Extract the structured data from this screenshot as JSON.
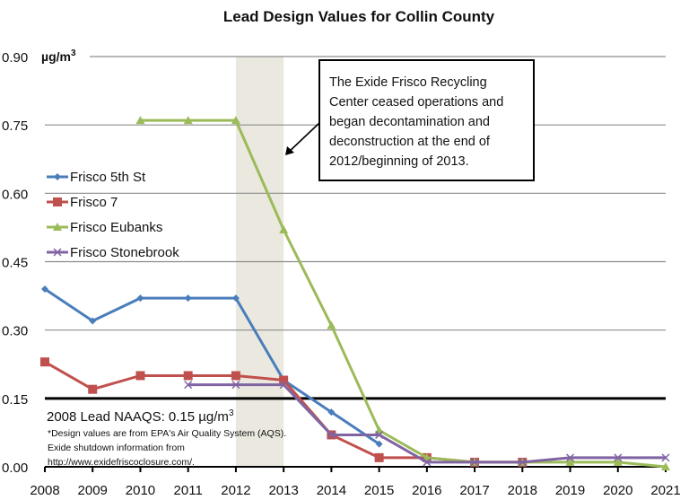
{
  "chart_data": {
    "type": "line",
    "title": "Lead Design Values for Collin County",
    "ylabel": "µg/m³",
    "xlabel": "",
    "x": [
      2008,
      2009,
      2010,
      2011,
      2012,
      2013,
      2014,
      2015,
      2016,
      2017,
      2018,
      2019,
      2020,
      2021
    ],
    "xlim": [
      2008,
      2021
    ],
    "ylim": [
      0,
      0.9
    ],
    "yticks": [
      "0.00",
      "0.15",
      "0.30",
      "0.45",
      "0.60",
      "0.75",
      "0.90"
    ],
    "ytick_values": [
      0,
      0.15,
      0.3,
      0.45,
      0.6,
      0.75,
      0.9
    ],
    "xticks": [
      "2008",
      "2009",
      "2010",
      "2011",
      "2012",
      "2013",
      "2014",
      "2015",
      "2016",
      "2017",
      "2018",
      "2019",
      "2020",
      "2021"
    ],
    "grid": true,
    "legend_position": "left",
    "series": [
      {
        "name": "Frisco 5th St",
        "color": "#4a7ebb",
        "marker": "diamond",
        "values": [
          0.39,
          0.32,
          0.37,
          0.37,
          0.37,
          0.19,
          0.12,
          0.05,
          null,
          null,
          null,
          null,
          null,
          null
        ]
      },
      {
        "name": "Frisco 7",
        "color": "#c0504d",
        "marker": "square",
        "values": [
          0.23,
          0.17,
          0.2,
          0.2,
          0.2,
          0.19,
          0.07,
          0.02,
          0.02,
          0.01,
          0.01,
          null,
          null,
          null
        ]
      },
      {
        "name": "Frisco Eubanks",
        "color": "#9bbb59",
        "marker": "triangle",
        "values": [
          null,
          null,
          0.76,
          0.76,
          0.76,
          0.52,
          0.31,
          0.08,
          0.02,
          0.01,
          0.01,
          0.01,
          0.01,
          0.0
        ]
      },
      {
        "name": "Frisco Stonebrook",
        "color": "#8064a2",
        "marker": "x",
        "values": [
          null,
          null,
          null,
          0.18,
          0.18,
          0.18,
          0.07,
          0.07,
          0.01,
          0.01,
          0.01,
          0.02,
          0.02,
          0.02
        ]
      }
    ],
    "reference_line": {
      "value": 0.15,
      "label_main": "2008 Lead NAAQS: 0.15 µg/m",
      "label_sup": "3",
      "color": "#000000"
    },
    "shaded_region": {
      "from": 2012,
      "to": 2013,
      "color": "#eae8df"
    },
    "annotation": {
      "lines": [
        "The Exide Frisco Recycling",
        "Center ceased operations and",
        "began decontamination and",
        "deconstruction at the end of",
        "2012/beginning of 2013."
      ],
      "points_to_year": 2013
    },
    "notes": [
      "*Design values are from EPA's Air Quality System (AQS).",
      "Exide shutdown information from",
      "http://www.exidefriscoclosure.com/."
    ],
    "unit_label_main": "µg/m",
    "unit_label_sup": "3"
  }
}
